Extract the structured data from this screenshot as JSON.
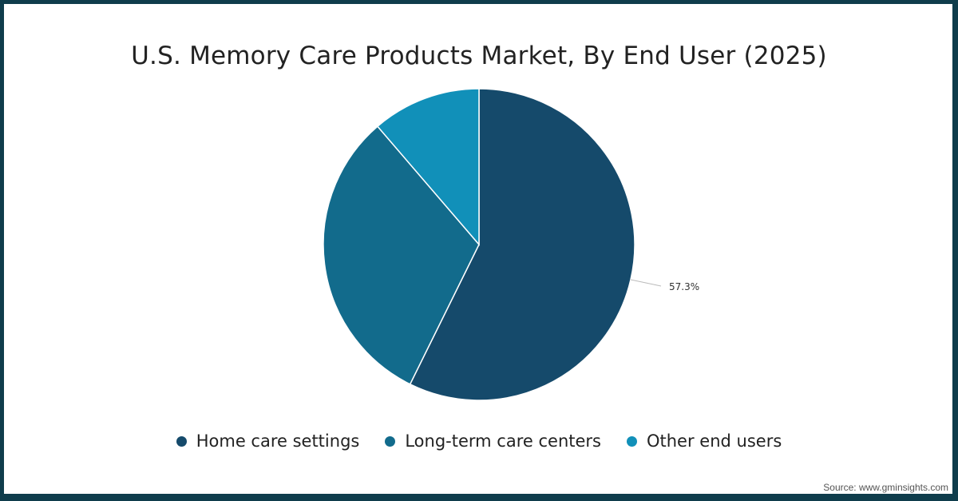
{
  "chart_data": {
    "type": "pie",
    "title": "U.S. Memory Care Products Market, By End User (2025)",
    "categories": [
      "Home care settings",
      "Long-term care centers",
      "Other end users"
    ],
    "values": [
      57.3,
      31.4,
      11.3
    ],
    "data_labels": [
      "57.3%",
      "",
      ""
    ],
    "colors": [
      "#154a6b",
      "#126b8c",
      "#1190b9"
    ],
    "legend_position": "bottom"
  },
  "title": "U.S. Memory Care Products Market, By End User (2025)",
  "legend": [
    {
      "label": "Home care settings",
      "color": "#154a6b"
    },
    {
      "label": "Long-term care centers",
      "color": "#126b8c"
    },
    {
      "label": "Other end users",
      "color": "#1190b9"
    }
  ],
  "data_label": "57.3%",
  "source": "Source: www.gminsights.com"
}
